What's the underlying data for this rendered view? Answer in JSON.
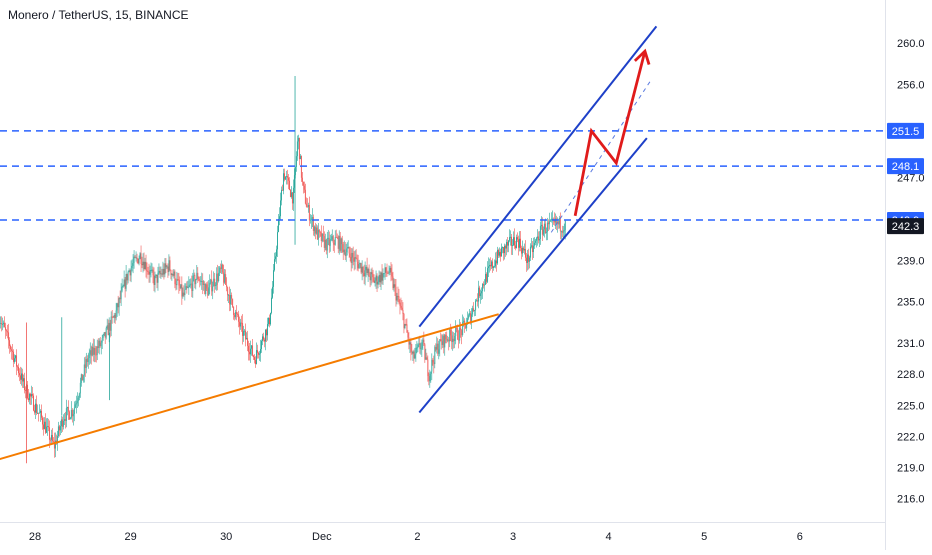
{
  "header": {
    "title": "Monero / TetherUS, 15, BINANCE"
  },
  "chart_data": {
    "type": "candlestick",
    "symbol": "Monero / TetherUS",
    "interval": "15",
    "exchange": "BINANCE",
    "ylim": [
      214.5,
      262.5
    ],
    "y_ticks": [
      {
        "label": "260.0",
        "value": 260.0
      },
      {
        "label": "256.0",
        "value": 256.0
      },
      {
        "label": "247.0",
        "value": 247.0
      },
      {
        "label": "239.0",
        "value": 239.0
      },
      {
        "label": "235.0",
        "value": 235.0
      },
      {
        "label": "231.0",
        "value": 231.0
      },
      {
        "label": "228.0",
        "value": 228.0
      },
      {
        "label": "225.0",
        "value": 225.0
      },
      {
        "label": "222.0",
        "value": 222.0
      },
      {
        "label": "219.0",
        "value": 219.0
      },
      {
        "label": "216.0",
        "value": 216.0
      }
    ],
    "x_ticks": [
      {
        "label": "28",
        "day": 0.0
      },
      {
        "label": "29",
        "day": 1.0
      },
      {
        "label": "30",
        "day": 2.0
      },
      {
        "label": "Dec",
        "day": 3.0
      },
      {
        "label": "2",
        "day": 4.0
      },
      {
        "label": "3",
        "day": 5.0
      },
      {
        "label": "4",
        "day": 6.0
      },
      {
        "label": "5",
        "day": 7.0
      },
      {
        "label": "6",
        "day": 8.0
      }
    ],
    "price_path": [
      [
        -0.37,
        233.6
      ],
      [
        -0.25,
        230.5
      ],
      [
        -0.12,
        227.0
      ],
      [
        0.08,
        223.5
      ],
      [
        0.2,
        221.0
      ],
      [
        0.3,
        224.0
      ],
      [
        0.4,
        224.5
      ],
      [
        0.55,
        229.5
      ],
      [
        0.7,
        231.0
      ],
      [
        0.85,
        234.0
      ],
      [
        0.98,
        238.0
      ],
      [
        1.1,
        239.5
      ],
      [
        1.25,
        237.0
      ],
      [
        1.4,
        238.5
      ],
      [
        1.55,
        235.5
      ],
      [
        1.7,
        237.5
      ],
      [
        1.8,
        236.0
      ],
      [
        1.95,
        238.0
      ],
      [
        2.05,
        235.0
      ],
      [
        2.15,
        232.5
      ],
      [
        2.3,
        229.5
      ],
      [
        2.45,
        233.0
      ],
      [
        2.52,
        240.0
      ],
      [
        2.6,
        247.5
      ],
      [
        2.7,
        245.0
      ],
      [
        2.75,
        251.0
      ],
      [
        2.8,
        246.0
      ],
      [
        2.85,
        244.0
      ],
      [
        2.95,
        241.5
      ],
      [
        3.05,
        240.5
      ],
      [
        3.15,
        241.0
      ],
      [
        3.3,
        239.5
      ],
      [
        3.45,
        238.0
      ],
      [
        3.55,
        237.0
      ],
      [
        3.7,
        238.0
      ],
      [
        3.85,
        233.5
      ],
      [
        3.95,
        229.5
      ],
      [
        4.05,
        231.0
      ],
      [
        4.12,
        228.0
      ],
      [
        4.2,
        230.5
      ],
      [
        4.3,
        231.5
      ],
      [
        4.45,
        232.0
      ],
      [
        4.55,
        233.5
      ],
      [
        4.65,
        236.0
      ],
      [
        4.75,
        238.0
      ],
      [
        4.85,
        239.5
      ],
      [
        4.95,
        240.5
      ],
      [
        5.05,
        241.0
      ],
      [
        5.15,
        239.0
      ],
      [
        5.3,
        242.0
      ],
      [
        5.45,
        242.5
      ],
      [
        5.55,
        242.3
      ]
    ],
    "horizontal_levels": [
      {
        "label": "251.5",
        "value": 251.5,
        "style": "dashed",
        "color": "#2962ff"
      },
      {
        "label": "248.1",
        "value": 248.1,
        "style": "dashed",
        "color": "#2962ff"
      },
      {
        "label": "242.9",
        "value": 242.9,
        "style": "dashed",
        "color": "#2962ff"
      }
    ],
    "last_price": {
      "label": "242.3",
      "value": 242.3
    },
    "trendlines": [
      {
        "name": "support",
        "color": "#f57c00",
        "points": [
          [
            -0.37,
            219.8
          ],
          [
            4.85,
            233.8
          ]
        ]
      },
      {
        "name": "channel-upper",
        "color": "#1e40c8",
        "points": [
          [
            4.02,
            232.6
          ],
          [
            6.5,
            261.6
          ]
        ]
      },
      {
        "name": "channel-lower",
        "color": "#1e40c8",
        "points": [
          [
            4.02,
            224.3
          ],
          [
            6.4,
            250.8
          ]
        ]
      },
      {
        "name": "channel-mid",
        "color": "#5b7be0",
        "style": "dashed",
        "points": [
          [
            5.4,
            241.7
          ],
          [
            6.45,
            256.5
          ]
        ]
      }
    ],
    "projection": {
      "color": "#e01b1b",
      "points": [
        [
          5.65,
          243.3
        ],
        [
          5.82,
          251.5
        ],
        [
          6.08,
          248.4
        ],
        [
          6.38,
          259.2
        ]
      ]
    },
    "colors": {
      "up": "#26a69a",
      "down": "#ef5350",
      "background": "#ffffff"
    }
  }
}
